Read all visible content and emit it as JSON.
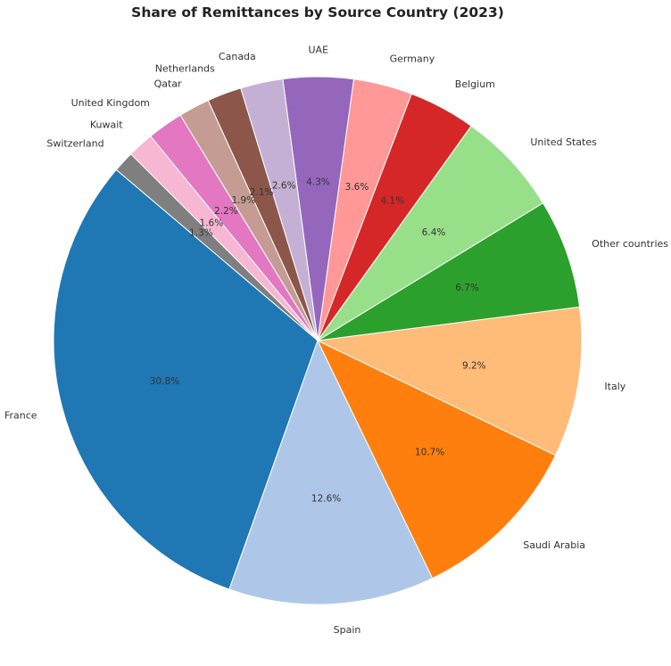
{
  "chart_data": {
    "type": "pie",
    "title": "Share of Remittances by Source Country (2023)",
    "start_angle_deg": 135,
    "direction": "counterclockwise",
    "categories": [
      "Switzerland",
      "France",
      "Spain",
      "Saudi Arabia",
      "Italy",
      "Other countries",
      "United States",
      "Belgium",
      "Germany",
      "UAE",
      "Canada",
      "Netherlands",
      "Qatar",
      "United Kingdom",
      "Kuwait"
    ],
    "values": [
      1.3,
      30.8,
      12.6,
      10.7,
      9.2,
      6.7,
      6.4,
      4.1,
      3.6,
      4.3,
      2.6,
      2.1,
      1.9,
      2.2,
      1.6
    ],
    "value_labels": [
      "1.3%",
      "30.8%",
      "12.6%",
      "10.7%",
      "9.2%",
      "6.7%",
      "6.4%",
      "4.1%",
      "3.6%",
      "4.3%",
      "2.6%",
      "2.1%",
      "1.9%",
      "2.2%",
      "1.6%"
    ],
    "colors": [
      "#7f7f7f",
      "#1f77b4",
      "#aec7e8",
      "#ff7f0e",
      "#ffbb78",
      "#2ca02c",
      "#98df8a",
      "#d62728",
      "#ff9896",
      "#9467bd",
      "#c5b0d5",
      "#8c564b",
      "#c49c94",
      "#e377c2",
      "#f7b6d2"
    ],
    "legend": "none"
  }
}
